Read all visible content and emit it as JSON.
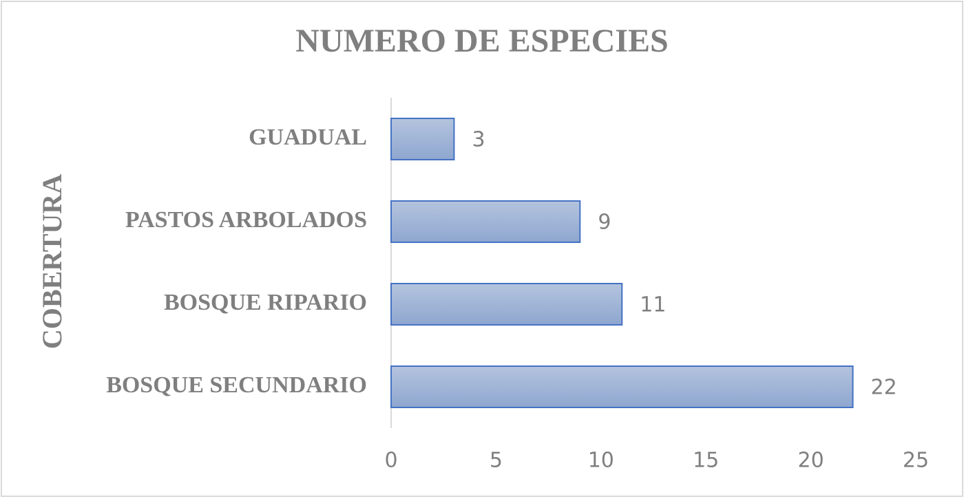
{
  "chart_data": {
    "type": "bar",
    "orientation": "horizontal",
    "title": "NUMERO DE ESPECIES",
    "y_label": "COBERTURA",
    "categories": [
      "GUADUAL",
      "PASTOS ARBOLADOS",
      "BOSQUE RIPARIO",
      "BOSQUE SECUNDARIO"
    ],
    "values": [
      3,
      9,
      11,
      22
    ],
    "color": "#4472c4",
    "xlim": [
      0,
      25
    ],
    "xticks": [
      0,
      5,
      10,
      15,
      20,
      25
    ],
    "grid": false
  }
}
